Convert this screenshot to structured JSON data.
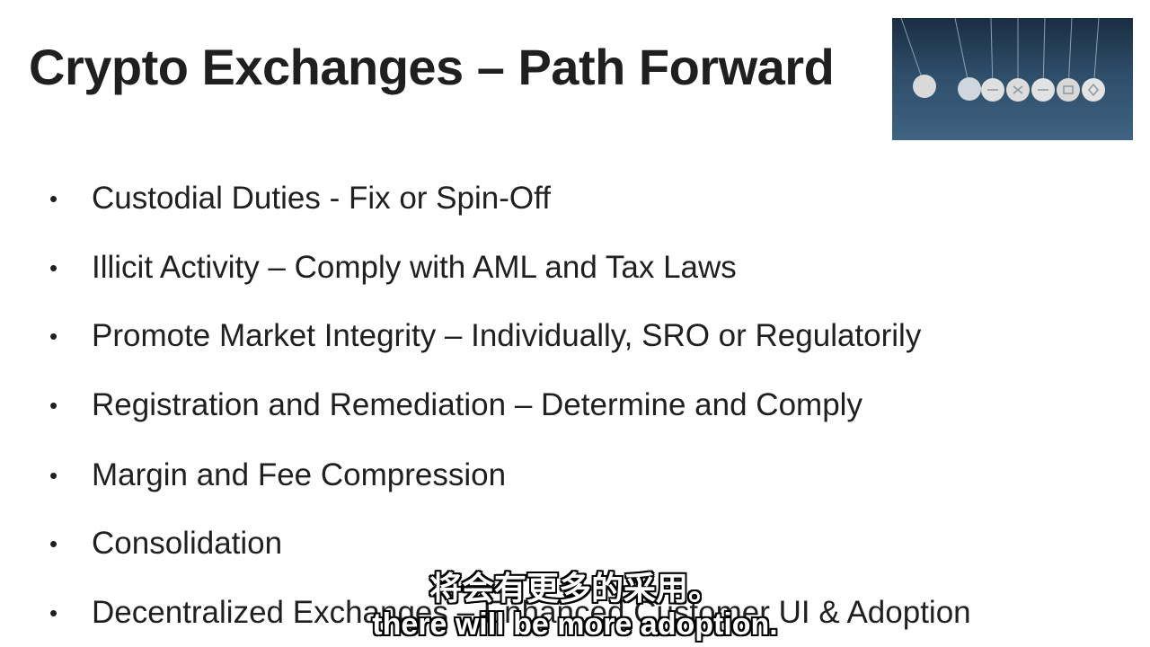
{
  "slide": {
    "title": "Crypto Exchanges – Path Forward",
    "bullets": [
      "Custodial Duties - Fix or Spin-Off",
      "Illicit Activity – Comply with AML and Tax Laws",
      "Promote Market Integrity – Individually, SRO or Regulatorily",
      "Registration and Remediation – Determine and Comply",
      "Margin and Fee Compression",
      "Consolidation",
      "Decentralized Exchanges – Enhanced Customer UI & Adoption"
    ],
    "bullet_glyph": "•"
  },
  "image": {
    "icon": "newtons-cradle-crypto-coins-icon"
  },
  "subtitles": {
    "chinese": "将会有更多的采用。",
    "english": "there will be more adoption."
  },
  "colors": {
    "text": "#202020",
    "background": "#ffffff",
    "subtitle_fill": "#ffffff",
    "subtitle_outline": "#000000"
  }
}
